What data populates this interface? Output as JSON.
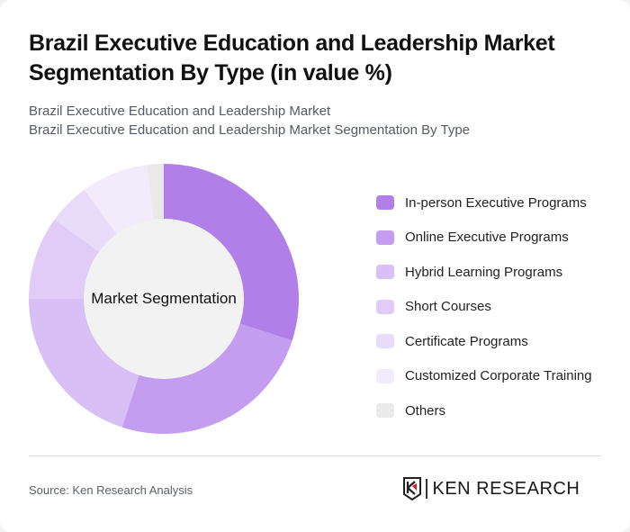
{
  "header": {
    "title": "Brazil Executive Education and Leadership Market Segmentation By Type (in value %)",
    "subtitle_line1": "Brazil Executive Education and Leadership Market",
    "subtitle_line2": "Brazil Executive Education and Leadership Market Segmentation By Type"
  },
  "chart_data": {
    "type": "pie",
    "donut": true,
    "title": "Brazil Executive Education and Leadership Market Segmentation By Type (in value %)",
    "center_label": "Market Segmentation",
    "legend_position": "right",
    "categories": [
      "In-person Executive Programs",
      "Online Executive Programs",
      "Hybrid Learning Programs",
      "Short Courses",
      "Certificate Programs",
      "Customized Corporate Training",
      "Others"
    ],
    "values": [
      30,
      25,
      20,
      10,
      5,
      8,
      2
    ],
    "colors": [
      "#b07fe8",
      "#c49cf0",
      "#d8bff6",
      "#e0ccf7",
      "#e9dcfa",
      "#f2ebfc",
      "#e9e9e9"
    ]
  },
  "footer": {
    "source": "Source: Ken Research Analysis",
    "logo_text": "KEN RESEARCH",
    "logo_k": "K"
  }
}
